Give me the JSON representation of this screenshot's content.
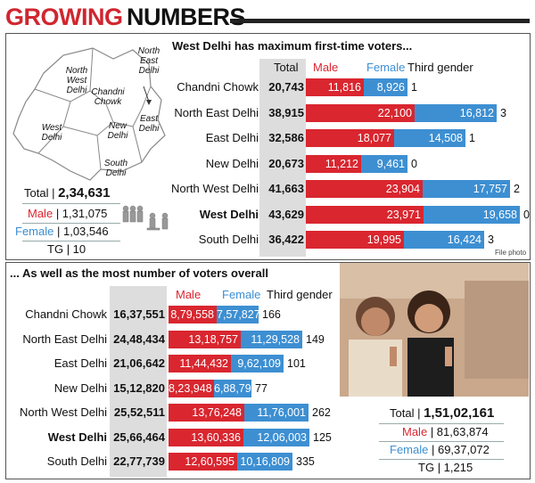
{
  "heading": {
    "word1": "GROWING",
    "word2": "NUMBERS"
  },
  "first_time": {
    "subtitle": "West Delhi has maximum first-time voters...",
    "header": {
      "total": "Total",
      "male": "Male",
      "female": "Female",
      "tg": "Third gender"
    },
    "summary": {
      "total_label": "Total |",
      "total": "2,34,631",
      "male_label": "Male",
      "male": "| 1,31,075",
      "female_label": "Female",
      "female": "| 1,03,546",
      "tg_label": "TG",
      "tg": "| 10"
    },
    "map_labels": [
      "North West Delhi",
      "Chandni Chowk",
      "North East Delhi",
      "West Delhi",
      "New Delhi",
      "East Delhi",
      "South Delhi"
    ],
    "credit": "File photo"
  },
  "overall": {
    "subtitle": "... As well as the most number of voters overall",
    "header": {
      "male": "Male",
      "female": "Female",
      "tg": "Third gender"
    },
    "summary": {
      "total_label": "Total |",
      "total": "1,51,02,161",
      "male_label": "Male",
      "male": "| 81,63,874",
      "female_label": "Female",
      "female": "| 69,37,072",
      "tg_label": "TG",
      "tg": "| 1,215"
    }
  },
  "colors": {
    "male": "#d9262f",
    "female": "#3d8fd2",
    "heading_accent": "#d0262f"
  },
  "chart_data": [
    {
      "type": "bar",
      "title": "West Delhi has maximum first-time voters...",
      "categories": [
        "Chandni Chowk",
        "North East Delhi",
        "East Delhi",
        "New Delhi",
        "North West Delhi",
        "West Delhi",
        "South Delhi"
      ],
      "totals": [
        "20,743",
        "38,915",
        "32,586",
        "20,673",
        "41,663",
        "43,629",
        "36,422"
      ],
      "series": [
        {
          "name": "Male",
          "values": [
            11816,
            22100,
            18077,
            11212,
            23904,
            23971,
            19995
          ],
          "labels": [
            "11,816",
            "22,100",
            "18,077",
            "11,212",
            "23,904",
            "23,971",
            "19,995"
          ]
        },
        {
          "name": "Female",
          "values": [
            8926,
            16812,
            14508,
            9461,
            17757,
            19658,
            16424
          ],
          "labels": [
            "8,926",
            "16,812",
            "14,508",
            "9,461",
            "17,757",
            "19,658",
            "16,424"
          ]
        },
        {
          "name": "Third gender",
          "values": [
            1,
            3,
            1,
            0,
            2,
            0,
            3
          ],
          "labels": [
            "1",
            "3",
            "1",
            "0",
            "2",
            "0",
            "3"
          ]
        }
      ],
      "stacked": true,
      "highlight": "West Delhi"
    },
    {
      "type": "bar",
      "title": "... As well as the most number of voters overall",
      "categories": [
        "Chandni Chowk",
        "North East Delhi",
        "East Delhi",
        "New Delhi",
        "North West Delhi",
        "West Delhi",
        "South Delhi"
      ],
      "totals": [
        "16,37,551",
        "24,48,434",
        "21,06,642",
        "15,12,820",
        "25,52,511",
        "25,66,464",
        "22,77,739"
      ],
      "series": [
        {
          "name": "Male",
          "values": [
            879558,
            1318757,
            1144432,
            823948,
            1376248,
            1360336,
            1260595
          ],
          "labels": [
            "8,79,558",
            "13,18,757",
            "11,44,432",
            "8,23,948",
            "13,76,248",
            "13,60,336",
            "12,60,595"
          ]
        },
        {
          "name": "Female",
          "values": [
            757827,
            1129528,
            962109,
            688795,
            1176001,
            1206003,
            1016809
          ],
          "labels": [
            "7,57,827",
            "11,29,528",
            "9,62,109",
            "6,88,795",
            "11,76,001",
            "12,06,003",
            "10,16,809"
          ]
        },
        {
          "name": "Third gender",
          "values": [
            166,
            149,
            101,
            77,
            262,
            125,
            335
          ],
          "labels": [
            "166",
            "149",
            "101",
            "77",
            "262",
            "125",
            "335"
          ]
        }
      ],
      "stacked": true,
      "highlight": "West Delhi"
    }
  ]
}
